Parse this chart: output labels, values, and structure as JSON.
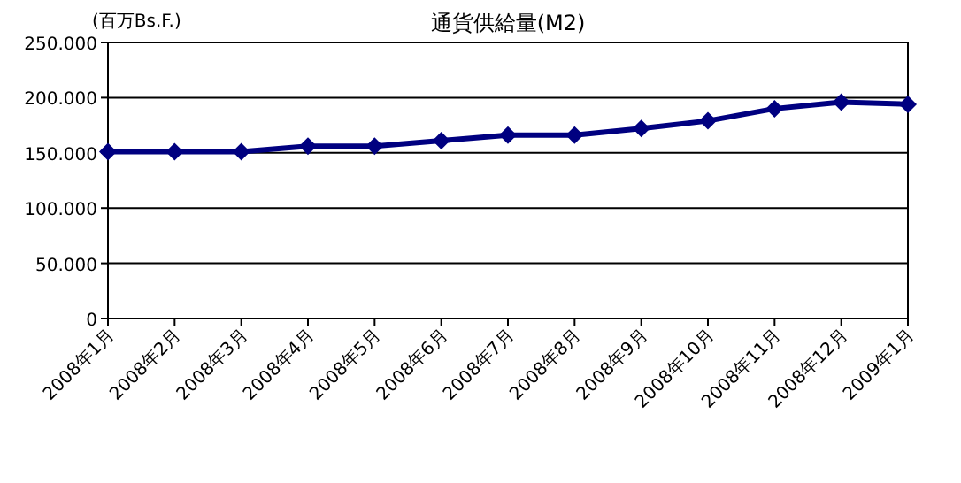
{
  "chart_data": {
    "type": "line",
    "title": "通貨供給量(M2)",
    "annotations": [
      "(百万Bs.F.)"
    ],
    "categories": [
      "2008年1月",
      "2008年2月",
      "2008年3月",
      "2008年4月",
      "2008年5月",
      "2008年6月",
      "2008年7月",
      "2008年8月",
      "2008年9月",
      "2008年10月",
      "2008年11月",
      "2008年12月",
      "2009年1月"
    ],
    "series": [
      {
        "color": "#000080",
        "values": [
          151000,
          151000,
          151000,
          156000,
          156000,
          161000,
          166000,
          166000,
          172000,
          179000,
          190000,
          196000,
          194000
        ]
      }
    ],
    "ylim": [
      0,
      250000
    ],
    "yticks": [
      {
        "value": 0,
        "label": "0"
      },
      {
        "value": 50000,
        "label": "50.000"
      },
      {
        "value": 100000,
        "label": "100.000"
      },
      {
        "value": 150000,
        "label": "150.000"
      },
      {
        "value": 200000,
        "label": "200.000"
      },
      {
        "value": 250000,
        "label": "250.000"
      }
    ],
    "grid": "y",
    "marker": "diamond",
    "line_style": "solid"
  }
}
